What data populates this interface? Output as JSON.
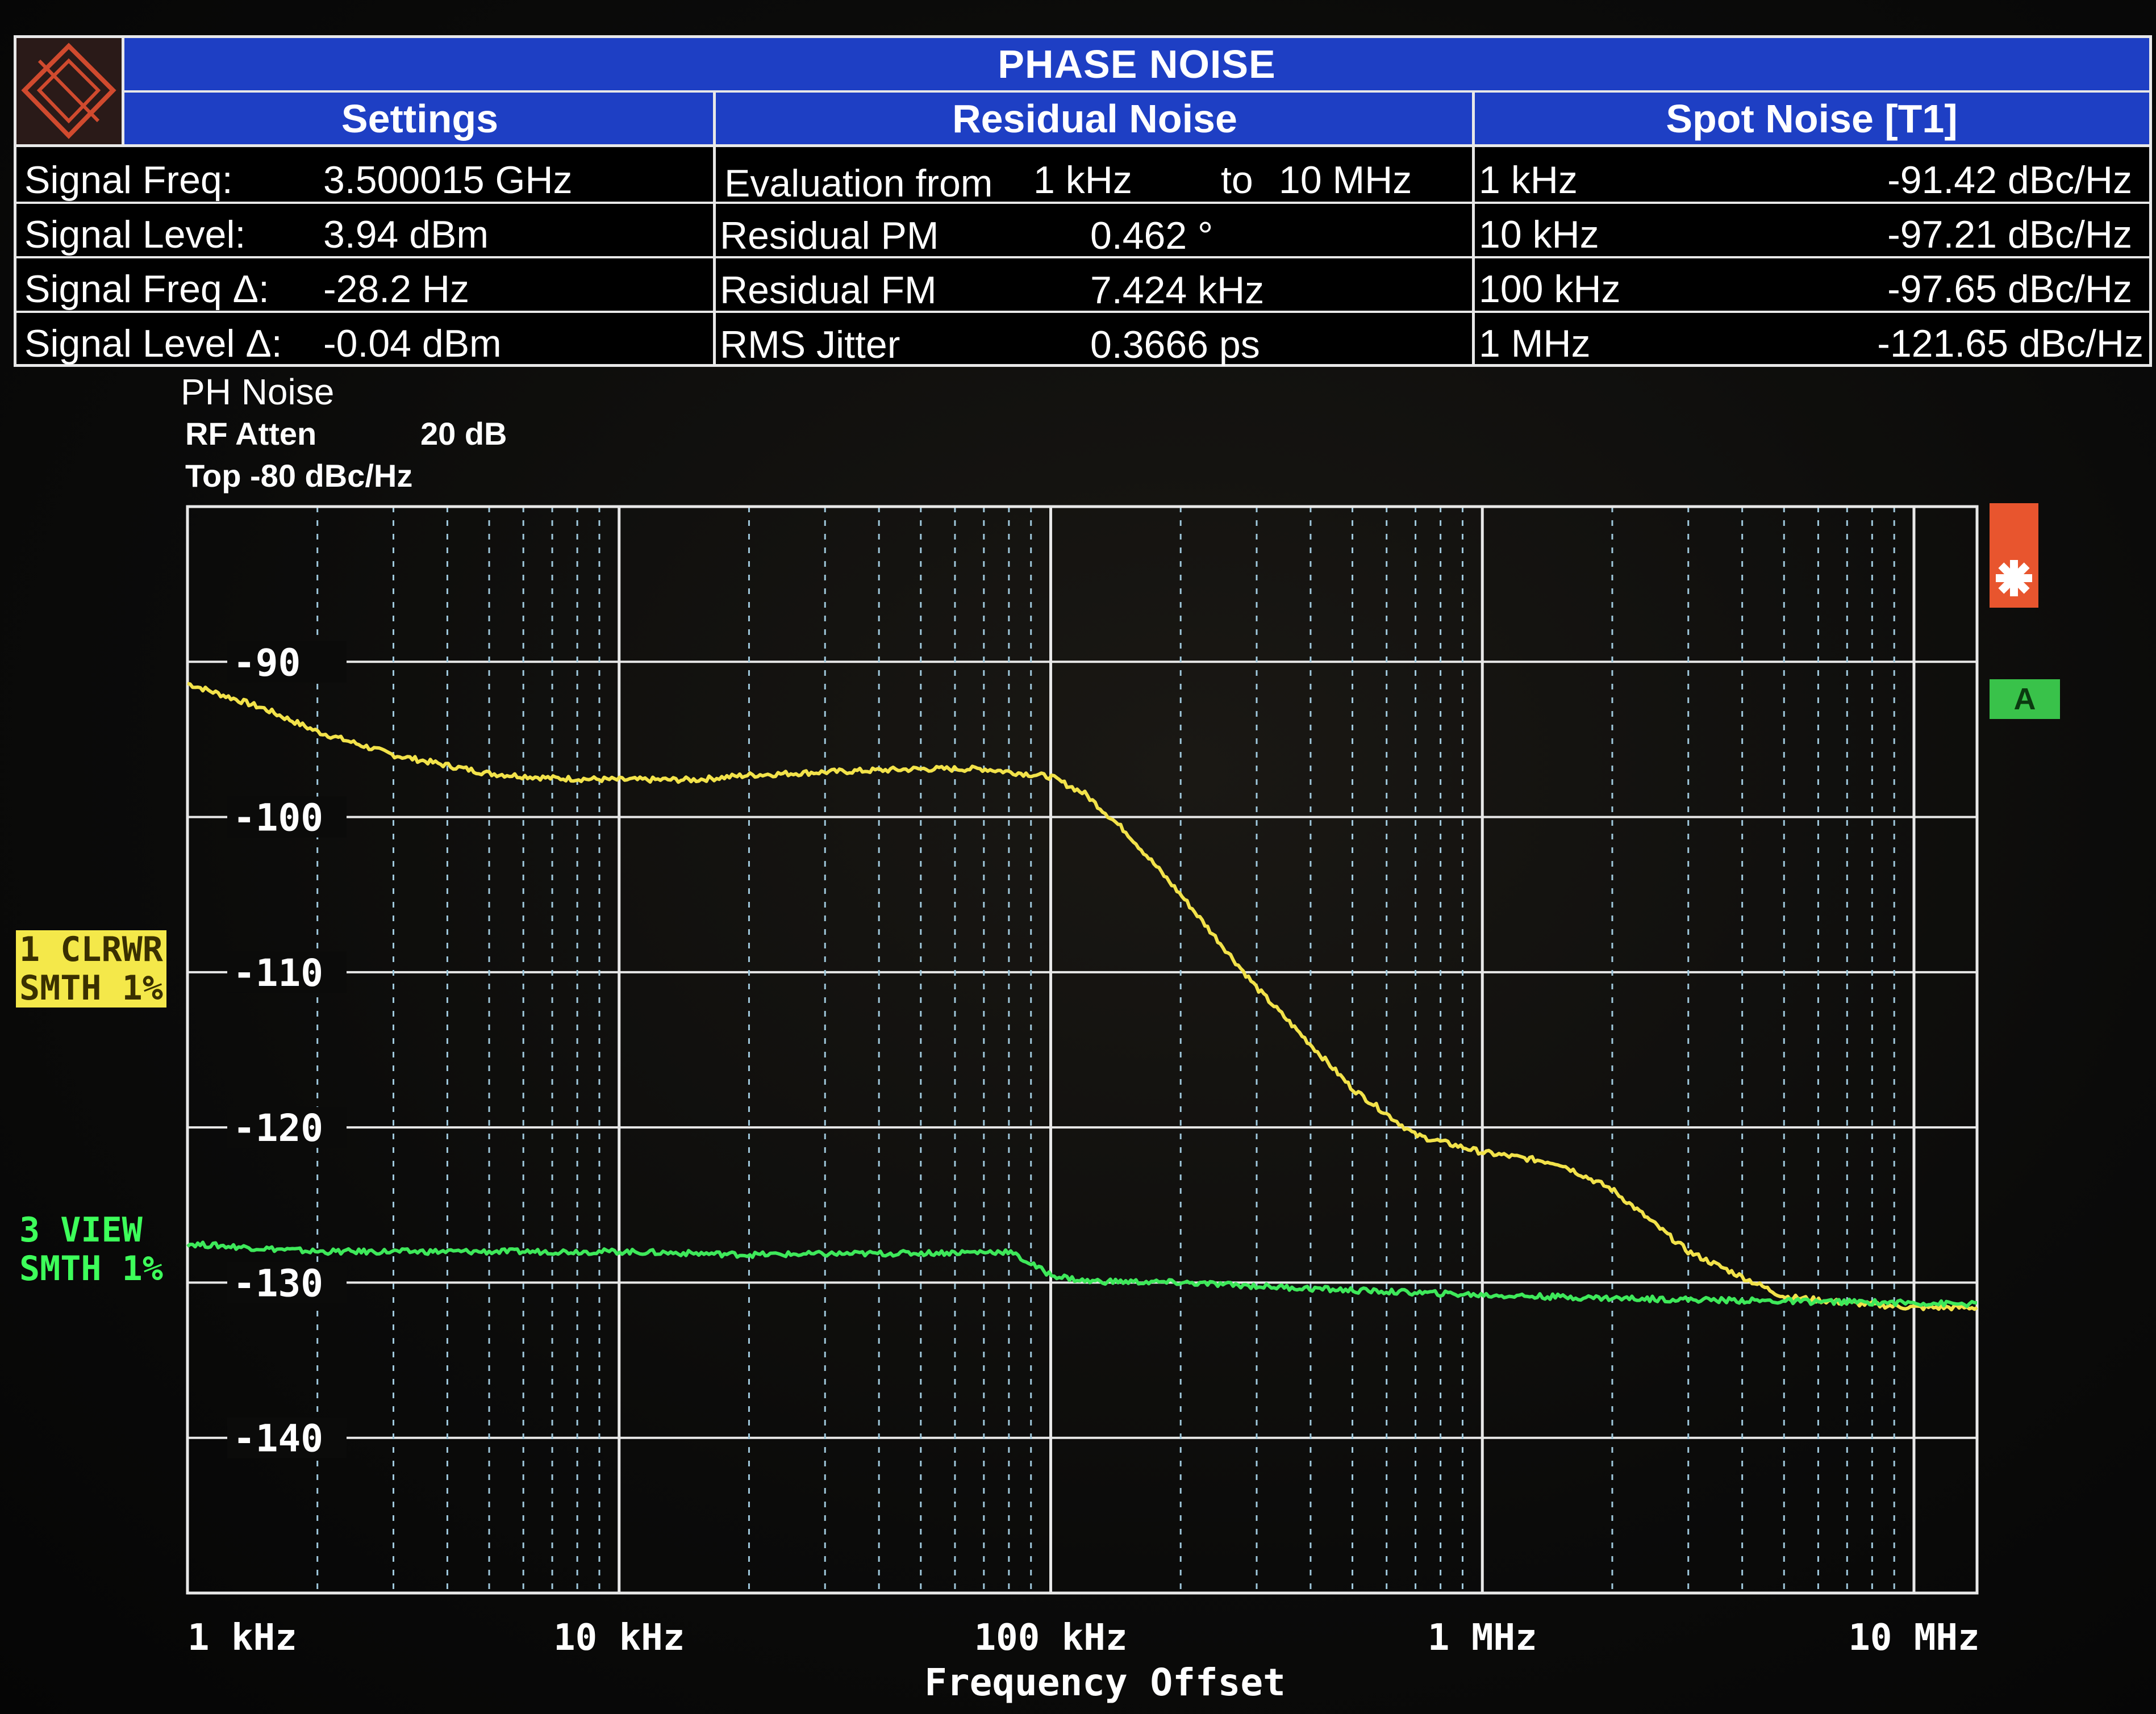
{
  "header": {
    "title": "PHASE NOISE",
    "columns": [
      "Settings",
      "Residual Noise",
      "Spot Noise [T1]"
    ]
  },
  "settings": [
    {
      "label": "Signal Freq:",
      "value": "3.500015 GHz"
    },
    {
      "label": "Signal Level:",
      "value": "3.94 dBm"
    },
    {
      "label": "Signal Freq Δ:",
      "value": "-28.2 Hz"
    },
    {
      "label": "Signal Level Δ:",
      "value": "-0.04 dBm"
    }
  ],
  "residual": {
    "evaluation_label": "Evaluation from",
    "evaluation_from": "1 kHz",
    "evaluation_to_label": "to",
    "evaluation_to": "10 MHz",
    "rows": [
      {
        "label": "Residual PM",
        "value": "0.462 °"
      },
      {
        "label": "Residual FM",
        "value": "7.424 kHz"
      },
      {
        "label": "RMS Jitter",
        "value": "0.3666 ps"
      }
    ]
  },
  "spot_noise": [
    {
      "offset": "1 kHz",
      "value": "-91.42 dBc/Hz"
    },
    {
      "offset": "10 kHz",
      "value": "-97.21 dBc/Hz"
    },
    {
      "offset": "100 kHz",
      "value": "-97.65 dBc/Hz"
    },
    {
      "offset": "1 MHz",
      "value": "-121.65 dBc/Hz"
    }
  ],
  "plot_info": {
    "name": "PH Noise",
    "rf_atten_label": "RF Atten",
    "rf_atten_value": "20 dB",
    "top": "Top -80 dBc/Hz"
  },
  "trace_labels": {
    "trace1_line1": "1 CLRWR",
    "trace1_line2": "SMTH 1%",
    "trace3_line1": "3 VIEW",
    "trace3_line2": "SMTH 1%",
    "marker_a": "A"
  },
  "colors": {
    "trace1": "#f2e24a",
    "trace3": "#3ee85a",
    "grid": "#e8e8e8",
    "header_blue": "#1e3fc4"
  },
  "chart_data": {
    "type": "line",
    "xscale": "log",
    "xlabel": "Frequency Offset",
    "xlim": [
      1000,
      14000000
    ],
    "ylim": [
      -150,
      -80
    ],
    "x_ticks": [
      {
        "value": 1000,
        "label": "1 kHz"
      },
      {
        "value": 10000,
        "label": "10 kHz"
      },
      {
        "value": 100000,
        "label": "100 kHz"
      },
      {
        "value": 1000000,
        "label": "1 MHz"
      },
      {
        "value": 10000000,
        "label": "10 MHz"
      }
    ],
    "y_ticks": [
      -90,
      -100,
      -110,
      -120,
      -130,
      -140
    ],
    "grid": true,
    "series": [
      {
        "name": "1 CLRWR",
        "color": "#f2e24a",
        "x": [
          1000,
          1500,
          2000,
          3000,
          5000,
          7000,
          10000,
          15000,
          20000,
          30000,
          50000,
          70000,
          100000,
          120000,
          150000,
          200000,
          300000,
          500000,
          700000,
          1000000,
          1500000,
          2000000,
          3000000,
          5000000,
          7000000,
          10000000,
          14000000
        ],
        "y": [
          -91.4,
          -93.0,
          -94.5,
          -96.0,
          -97.2,
          -97.5,
          -97.6,
          -97.6,
          -97.3,
          -97.1,
          -96.9,
          -96.9,
          -97.4,
          -98.5,
          -101.0,
          -105.0,
          -111.0,
          -117.5,
          -120.5,
          -121.6,
          -122.3,
          -124.0,
          -128.0,
          -130.9,
          -131.3,
          -131.6,
          -131.6
        ]
      },
      {
        "name": "3 VIEW",
        "color": "#3ee85a",
        "x": [
          1000,
          2000,
          5000,
          10000,
          20000,
          50000,
          80000,
          100000,
          120000,
          200000,
          500000,
          1000000,
          2000000,
          5000000,
          10000000,
          14000000
        ],
        "y": [
          -127.5,
          -128.0,
          -128.0,
          -128.0,
          -128.2,
          -128.1,
          -128.0,
          -129.5,
          -129.9,
          -130.0,
          -130.5,
          -130.8,
          -131.0,
          -131.2,
          -131.3,
          -131.4
        ]
      }
    ]
  }
}
